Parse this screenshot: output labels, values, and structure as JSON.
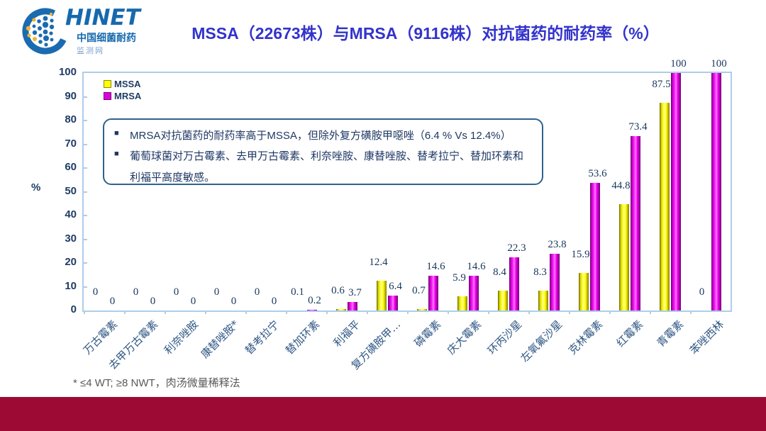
{
  "logo": {
    "brand": "HINET",
    "subtitle1": "中国细菌耐药",
    "subtitle2": "监测网"
  },
  "title": "MSSA（22673株）与MRSA（9116株）对抗菌药的耐药率（%）",
  "legend": [
    {
      "label": "MSSA",
      "color": "#FFFF00"
    },
    {
      "label": "MRSA",
      "color": "#DD00DD"
    }
  ],
  "note_box": {
    "bullets": [
      "MRSA对抗菌药的耐药率高于MSSA，但除外复方磺胺甲噁唑（6.4 % Vs 12.4%）",
      "葡萄球菌对万古霉素、去甲万古霉素、利奈唑胺、康替唑胺、替考拉宁、替加环素和利福平高度敏感。"
    ]
  },
  "footnote": "* ≤4 WT; ≥8 NWT，肉汤微量稀释法",
  "chart_data": {
    "type": "bar",
    "title": "MSSA（22673株）与MRSA（9116株）对抗菌药的耐药率（%）",
    "categories": [
      "万古霉素",
      "去甲万古霉素",
      "利奈唑胺",
      "康替唑胺*",
      "替考拉宁",
      "替加环素",
      "利福平",
      "复方磺胺甲…",
      "磷霉素",
      "庆大霉素",
      "环丙沙星",
      "左氧氟沙星",
      "克林霉素",
      "红霉素",
      "青霉素",
      "苯唑西林"
    ],
    "series": [
      {
        "name": "MSSA",
        "color": "#FFFF00",
        "values": [
          0,
          0,
          0,
          0,
          0,
          0.1,
          0.6,
          12.4,
          0.7,
          5.9,
          8.4,
          8.3,
          15.9,
          44.8,
          87.5,
          0
        ]
      },
      {
        "name": "MRSA",
        "color": "#EE00EE",
        "values": [
          0,
          0,
          0,
          0,
          0,
          0.2,
          3.7,
          6.4,
          14.6,
          14.6,
          22.3,
          23.8,
          53.6,
          73.4,
          100,
          100
        ]
      }
    ],
    "xlabel": "",
    "ylabel": "%",
    "ylim": [
      0,
      100
    ],
    "ytick_step": 10,
    "grid": false,
    "legend_position": "top-left",
    "data_labels": true
  },
  "colors": {
    "title_blue": "#3333CC",
    "navy_text": "#1F3864",
    "plot_border": "#ADCDE9",
    "bar_yellow": "#FFFF00",
    "bar_magenta": "#EE00EE",
    "bottom_band": "#9D0B35",
    "logo_blue": "#1B6BB0"
  }
}
